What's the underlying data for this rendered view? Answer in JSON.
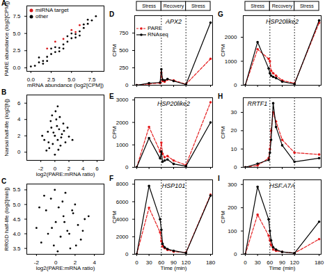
{
  "chart_data": [
    {
      "label": "A",
      "type": "scatter",
      "x_label": "mRNA abundance (log2[CPM])",
      "y_label": "PARE abundance (log2[CPM])",
      "xlim": [
        -0.5,
        9
      ],
      "xticks": [
        {
          "value": 0,
          "label": "0.0"
        },
        2.5,
        {
          "value": 5,
          "label": "5.0"
        },
        7.5
      ],
      "ylim": [
        -0.5,
        9
      ],
      "yticks": [
        {
          "value": 0,
          "label": "0.0"
        },
        2.5,
        {
          "value": 5,
          "label": "5.0"
        },
        7.5
      ],
      "legend": "top-left",
      "series": [
        {
          "name": "miRNA target",
          "color": "#d7191c",
          "x": [
            3,
            4,
            5,
            5.5,
            6,
            2
          ],
          "y": [
            3.8,
            4.2,
            5.5,
            5.2,
            6.2,
            2.8
          ]
        },
        {
          "name": "other",
          "color": "#000000",
          "x": [
            0,
            0.5,
            1,
            1.5,
            2,
            2.5,
            3,
            3.5,
            4,
            4.5,
            5,
            5.5,
            6,
            6.5,
            7,
            7.5,
            8,
            1,
            2,
            3,
            4,
            5,
            6,
            7,
            2.5,
            3.5,
            4.5,
            5.5,
            6.5,
            1.5
          ],
          "y": [
            0.2,
            0.3,
            0.8,
            1.0,
            1.6,
            2.0,
            2.3,
            2.9,
            3.4,
            3.8,
            4.3,
            4.9,
            5.3,
            5.8,
            6.4,
            6.9,
            7.5,
            1.5,
            1.0,
            3.0,
            2.8,
            5.0,
            4.7,
            7.0,
            2.8,
            2.4,
            4.6,
            4.4,
            6.3,
            0.6
          ]
        }
      ]
    },
    {
      "label": "B",
      "type": "scatter",
      "x_label": "log2(PARE:mRNA ratio)",
      "y_label": "Narsai half-life (log2[h])",
      "xlim": [
        -4,
        7
      ],
      "xticks": [
        -2,
        0,
        2,
        4,
        6
      ],
      "ylim": [
        -1,
        7
      ],
      "yticks": [
        0,
        2,
        4,
        6
      ],
      "series": [
        {
          "color": "#000000",
          "x": [
            -1.5,
            -1,
            -0.8,
            -0.5,
            -0.3,
            0,
            0.2,
            0.4,
            0.6,
            0.8,
            1,
            1.2,
            1.5,
            -1.2,
            -0.6,
            0.1,
            0.5,
            0.9,
            1.3,
            -0.9,
            -0.2,
            0.3,
            0.7,
            2,
            -1.8,
            1.8,
            2.5,
            0,
            0.4,
            -0.4
          ],
          "y": [
            1.5,
            2.5,
            0.5,
            3,
            1,
            2,
            4,
            1.5,
            2.8,
            0.8,
            2.2,
            3.5,
            1.2,
            0.2,
            3.8,
            5,
            0.3,
            1.8,
            2.6,
            1.2,
            2.4,
            3.2,
            4.3,
            1.9,
            2,
            3,
            1.5,
            -0.3,
            5.6,
            4.5
          ]
        }
      ]
    },
    {
      "label": "C",
      "type": "scatter",
      "x_label": "log2(PARE:mRNA ratio)",
      "y_label": "RRGD half-life (log2[min])",
      "xlim": [
        -3,
        5
      ],
      "xticks": [
        -2,
        0,
        2,
        4
      ],
      "ylim": [
        3.3,
        5.7
      ],
      "yticks": [
        3.5,
        {
          "value": 4,
          "label": "4.0"
        },
        4.5,
        {
          "value": 5,
          "label": "5.0"
        },
        5.5
      ],
      "series": [
        {
          "color": "#000000",
          "x": [
            -2,
            -1.5,
            -1,
            -0.8,
            -0.5,
            -0.2,
            0,
            0.3,
            0.5,
            0.8,
            1,
            1.2,
            1.5,
            1.8,
            2,
            2.3,
            2.6,
            3,
            -1.2,
            -0.4,
            0.2,
            0.7,
            1.4,
            2.1,
            -1.7,
            -0.1,
            0.9,
            1.7,
            2.8,
            3.4
          ],
          "y": [
            4.2,
            3.7,
            4.8,
            4.0,
            5.2,
            3.6,
            4.4,
            4.9,
            3.9,
            4.6,
            5.4,
            4.1,
            3.5,
            4.7,
            5.0,
            4.3,
            3.8,
            4.5,
            5.3,
            4.2,
            3.4,
            5.1,
            4.0,
            3.6,
            4.9,
            5.5,
            4.4,
            4.8,
            4.1,
            4.6
          ]
        }
      ]
    },
    {
      "label": "D",
      "type": "line",
      "title": "APX2",
      "y_label": "CPM",
      "tick_labels": "y",
      "legend": "top-left",
      "phases": [
        {
          "label": "Stress",
          "start": 0,
          "end": 60
        },
        {
          "label": "Recovery",
          "start": 60,
          "end": 120
        },
        {
          "label": "Stress",
          "start": 120,
          "end": 180
        }
      ],
      "dividers": [
        60,
        120
      ],
      "x": [
        0,
        30,
        57,
        60,
        63,
        68,
        75,
        90,
        120,
        180
      ],
      "xlim": [
        -5,
        185
      ],
      "xticks": [
        0,
        30,
        60,
        90,
        120,
        180
      ],
      "ylim": [
        0,
        1000
      ],
      "yticks": [
        0,
        250,
        500,
        750
      ],
      "series": [
        {
          "name": "PARE",
          "color": "#e41a1c",
          "line_style": "dashed",
          "marker": "circle",
          "values": [
            0,
            20,
            30,
            180,
            60,
            50,
            80,
            70,
            15,
            380
          ]
        },
        {
          "name": "RNAseq",
          "color": "#000000",
          "line_style": "solid",
          "marker": "circle",
          "values": [
            0,
            30,
            40,
            230,
            80,
            70,
            90,
            60,
            10,
            900
          ]
        }
      ]
    },
    {
      "label": "E",
      "type": "line",
      "title": "HSP20like2",
      "y_label": "CPM",
      "tick_labels": "y",
      "dividers": [
        60,
        120
      ],
      "x": [
        0,
        30,
        57,
        60,
        63,
        68,
        75,
        90,
        120,
        180
      ],
      "xlim": [
        -5,
        185
      ],
      "xticks": [
        0,
        30,
        60,
        90,
        120,
        180
      ],
      "ylim": [
        0,
        3100
      ],
      "yticks": [
        0,
        1000,
        2000,
        3000
      ],
      "series": [
        {
          "name": "PARE",
          "color": "#e41a1c",
          "line_style": "dashed",
          "marker": "circle",
          "values": [
            0,
            1800,
            700,
            1100,
            600,
            450,
            500,
            300,
            100,
            2900
          ]
        },
        {
          "name": "RNAseq",
          "color": "#000000",
          "line_style": "solid",
          "marker": "circle",
          "values": [
            0,
            1300,
            400,
            700,
            250,
            300,
            350,
            150,
            50,
            2000
          ]
        }
      ]
    },
    {
      "label": "F",
      "type": "line",
      "title": "HSP101",
      "y_label": "CPM",
      "x_label": "Time (min)",
      "dividers": [
        60,
        120
      ],
      "x": [
        0,
        30,
        57,
        60,
        63,
        68,
        75,
        90,
        120,
        180
      ],
      "xlim": [
        -5,
        185
      ],
      "xticks": [
        0,
        30,
        60,
        90,
        120,
        180
      ],
      "ylim": [
        0,
        8500
      ],
      "yticks": [
        0,
        2000,
        4000,
        6000,
        8000
      ],
      "series": [
        {
          "name": "PARE",
          "color": "#e41a1c",
          "line_style": "dashed",
          "marker": "circle",
          "values": [
            0,
            5300,
            2500,
            1500,
            900,
            700,
            500,
            300,
            200,
            6800
          ]
        },
        {
          "name": "RNAseq",
          "color": "#000000",
          "line_style": "solid",
          "marker": "circle",
          "values": [
            0,
            7800,
            4000,
            2800,
            1200,
            800,
            600,
            400,
            150,
            6700
          ]
        }
      ]
    },
    {
      "label": "G",
      "type": "line",
      "title": "HSP20like2",
      "y_label": "CPM",
      "tick_labels": "y",
      "phases": [
        {
          "label": "Stress",
          "start": 0,
          "end": 60
        },
        {
          "label": "Recovery",
          "start": 60,
          "end": 120
        },
        {
          "label": "Stress",
          "start": 120,
          "end": 180
        }
      ],
      "dividers": [
        60,
        120
      ],
      "x": [
        0,
        30,
        57,
        60,
        63,
        68,
        75,
        90,
        120,
        180
      ],
      "xlim": [
        -5,
        185
      ],
      "xticks": [
        0,
        30,
        60,
        90,
        120,
        180
      ],
      "ylim": [
        0,
        2900
      ],
      "yticks": [
        0,
        1000,
        2000
      ],
      "series": [
        {
          "name": "PARE",
          "color": "#e41a1c",
          "line_style": "dashed",
          "marker": "circle",
          "values": [
            0,
            1500,
            1100,
            1000,
            600,
            500,
            400,
            200,
            80,
            2600
          ]
        },
        {
          "name": "RNAseq",
          "color": "#000000",
          "line_style": "solid",
          "marker": "circle",
          "values": [
            0,
            1800,
            700,
            500,
            400,
            350,
            300,
            150,
            50,
            2700
          ]
        }
      ]
    },
    {
      "label": "H",
      "type": "line",
      "title": "RRTF1",
      "y_label": "CPM",
      "tick_labels": "y",
      "dividers": [
        60,
        120
      ],
      "x": [
        0,
        30,
        57,
        60,
        63,
        68,
        75,
        90,
        120,
        180
      ],
      "xlim": [
        -5,
        185
      ],
      "xticks": [
        0,
        30,
        60,
        90,
        120,
        180
      ],
      "ylim": [
        0,
        38
      ],
      "yticks": [
        0,
        10,
        20,
        30
      ],
      "series": [
        {
          "name": "PARE",
          "color": "#e41a1c",
          "line_style": "dashed",
          "marker": "circle",
          "values": [
            0,
            1,
            5,
            10,
            20,
            30,
            25,
            15,
            8,
            7
          ]
        },
        {
          "name": "RNAseq",
          "color": "#000000",
          "line_style": "solid",
          "marker": "circle",
          "values": [
            0,
            2,
            4,
            8,
            15,
            35,
            22,
            12,
            3,
            5
          ]
        }
      ]
    },
    {
      "label": "I",
      "type": "line",
      "title": "HSF.A7A",
      "y_label": "CPM",
      "x_label": "Time (min)",
      "dividers": [
        60,
        120
      ],
      "x": [
        0,
        30,
        57,
        60,
        63,
        68,
        75,
        90,
        120,
        180
      ],
      "xlim": [
        -5,
        185
      ],
      "xticks": [
        0,
        30,
        60,
        90,
        120,
        180
      ],
      "ylim": [
        0,
        320
      ],
      "yticks": [
        0,
        100,
        200,
        300
      ],
      "series": [
        {
          "name": "PARE",
          "color": "#e41a1c",
          "line_style": "dashed",
          "marker": "circle",
          "values": [
            0,
            170,
            80,
            60,
            40,
            20,
            15,
            10,
            5,
            65
          ]
        },
        {
          "name": "RNAseq",
          "color": "#000000",
          "line_style": "solid",
          "marker": "circle",
          "values": [
            0,
            290,
            150,
            100,
            60,
            30,
            20,
            10,
            5,
            140
          ]
        }
      ]
    }
  ]
}
